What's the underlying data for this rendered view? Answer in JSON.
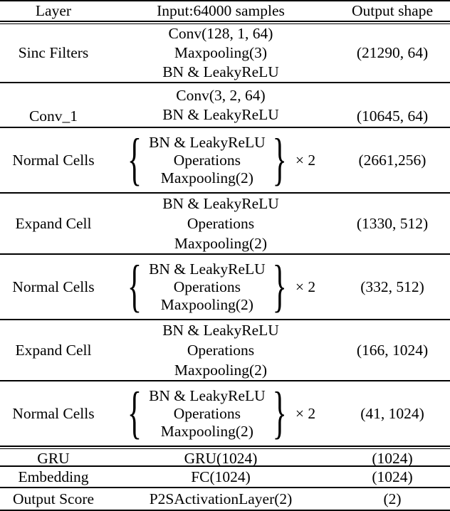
{
  "colors": {
    "text": "#000000",
    "background": "#ffffff",
    "rule": "#000000"
  },
  "table": {
    "header": {
      "layer": "Layer",
      "input": "Input:64000 samples",
      "output": "Output shape"
    },
    "rows": [
      {
        "layer": "Sinc Filters",
        "lines": [
          "Conv(128, 1, 64)",
          "Maxpooling(3)",
          "BN & LeakyReLU"
        ],
        "output": "(21290, 64)"
      },
      {
        "layer": "Conv_1",
        "lines": [
          "Conv(3, 2, 64)",
          "BN & LeakyReLU"
        ],
        "output": "(10645, 64)"
      },
      {
        "layer": "Normal Cells",
        "brace": true,
        "lines": [
          "BN & LeakyReLU",
          "Operations",
          "Maxpooling(2)"
        ],
        "multiplier": "× 2",
        "output": "(2661,256)"
      },
      {
        "layer": "Expand Cell",
        "lines": [
          "BN & LeakyReLU",
          "Operations",
          "Maxpooling(2)"
        ],
        "output": "(1330, 512)"
      },
      {
        "layer": "Normal Cells",
        "brace": true,
        "lines": [
          "BN & LeakyReLU",
          "Operations",
          "Maxpooling(2)"
        ],
        "multiplier": "× 2",
        "output": "(332, 512)"
      },
      {
        "layer": "Expand Cell",
        "lines": [
          "BN & LeakyReLU",
          "Operations",
          "Maxpooling(2)"
        ],
        "output": "(166, 1024)"
      },
      {
        "layer": "Normal Cells",
        "brace": true,
        "lines": [
          "BN & LeakyReLU",
          "Operations",
          "Maxpooling(2)"
        ],
        "multiplier": "× 2",
        "output": "(41, 1024)"
      },
      {
        "layer": "GRU",
        "lines": [
          "GRU(1024)"
        ],
        "output": "(1024)"
      },
      {
        "layer": "Embedding",
        "lines": [
          "FC(1024)"
        ],
        "output": "(1024)"
      },
      {
        "layer": "Output Score",
        "lines": [
          "P2SActivationLayer(2)"
        ],
        "output": "(2)"
      }
    ]
  }
}
